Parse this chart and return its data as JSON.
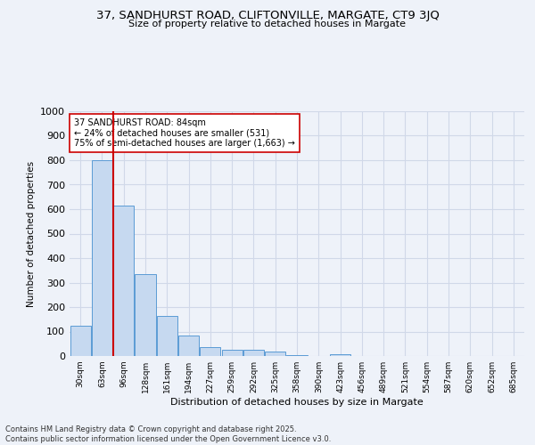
{
  "title": "37, SANDHURST ROAD, CLIFTONVILLE, MARGATE, CT9 3JQ",
  "subtitle": "Size of property relative to detached houses in Margate",
  "xlabel": "Distribution of detached houses by size in Margate",
  "ylabel": "Number of detached properties",
  "bar_counts": [
    122,
    800,
    615,
    335,
    163,
    82,
    38,
    26,
    24,
    20,
    5,
    0,
    8,
    0,
    0,
    0,
    0,
    0,
    0,
    0,
    0
  ],
  "bin_labels": [
    "30sqm",
    "63sqm",
    "96sqm",
    "128sqm",
    "161sqm",
    "194sqm",
    "227sqm",
    "259sqm",
    "292sqm",
    "325sqm",
    "358sqm",
    "390sqm",
    "423sqm",
    "456sqm",
    "489sqm",
    "521sqm",
    "554sqm",
    "587sqm",
    "620sqm",
    "652sqm",
    "685sqm"
  ],
  "bar_color": "#c6d9f0",
  "bar_edge_color": "#5b9bd5",
  "grid_color": "#d0d8e8",
  "vline_x_index": 1,
  "vline_color": "#cc0000",
  "annotation_text": "37 SANDHURST ROAD: 84sqm\n← 24% of detached houses are smaller (531)\n75% of semi-detached houses are larger (1,663) →",
  "annotation_box_color": "#ffffff",
  "annotation_box_edge": "#cc0000",
  "ylim": [
    0,
    1000
  ],
  "yticks": [
    0,
    100,
    200,
    300,
    400,
    500,
    600,
    700,
    800,
    900,
    1000
  ],
  "footer_text": "Contains HM Land Registry data © Crown copyright and database right 2025.\nContains public sector information licensed under the Open Government Licence v3.0.",
  "bg_color": "#eef2f9"
}
